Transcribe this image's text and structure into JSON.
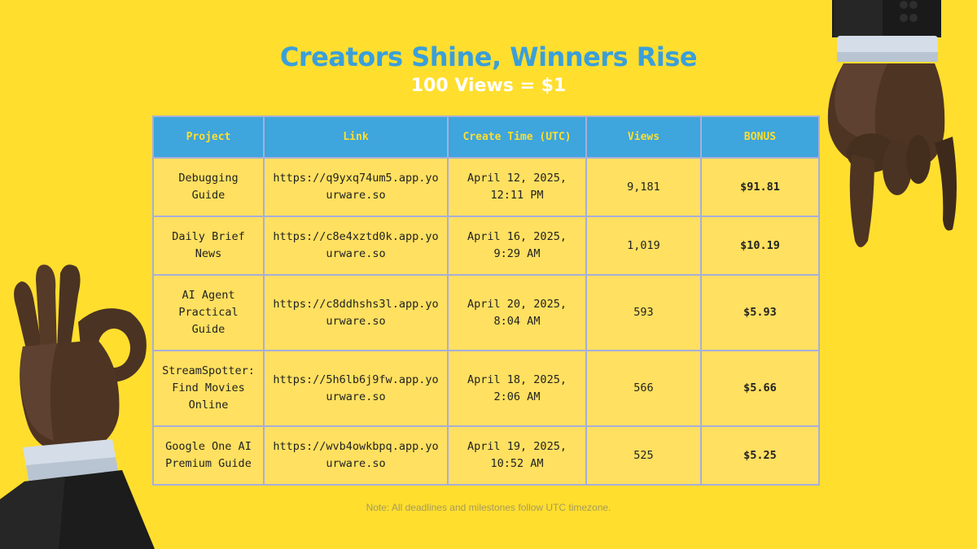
{
  "header": {
    "title": "Creators Shine, Winners Rise",
    "subtitle": "100 Views = $1"
  },
  "table": {
    "columns": [
      "Project",
      "Link",
      "Create Time (UTC)",
      "Views",
      "BONUS"
    ],
    "rows": [
      {
        "project": "Debugging Guide",
        "link": "https://q9yxq74um5.app.yourware.so",
        "time": "April 12, 2025, 12:11 PM",
        "views": "9,181",
        "bonus": "$91.81"
      },
      {
        "project": "Daily Brief News",
        "link": "https://c8e4xztd0k.app.yourware.so",
        "time": "April 16, 2025, 9:29 AM",
        "views": "1,019",
        "bonus": "$10.19"
      },
      {
        "project": "AI Agent Practical Guide",
        "link": "https://c8ddhshs3l.app.yourware.so",
        "time": "April 20, 2025, 8:04 AM",
        "views": "593",
        "bonus": "$5.93"
      },
      {
        "project": "StreamSpotter: Find Movies Online",
        "link": "https://5h6lb6j9fw.app.yourware.so",
        "time": "April 18, 2025, 2:06 AM",
        "views": "566",
        "bonus": "$5.66"
      },
      {
        "project": "Google One AI Premium Guide",
        "link": "https://wvb4owkbpq.app.yourware.so",
        "time": "April 19, 2025, 10:52 AM",
        "views": "525",
        "bonus": "$5.25"
      }
    ]
  },
  "note": "Note: All deadlines and milestones follow UTC timezone.",
  "decor": {
    "left_hand": "ok-hand-gesture",
    "right_hand": "pointing-down-hand"
  },
  "colors": {
    "background": "#FFDE2E",
    "accent": "#3EA5DD",
    "cell": "#FFE060",
    "border": "#A6AEDB"
  }
}
